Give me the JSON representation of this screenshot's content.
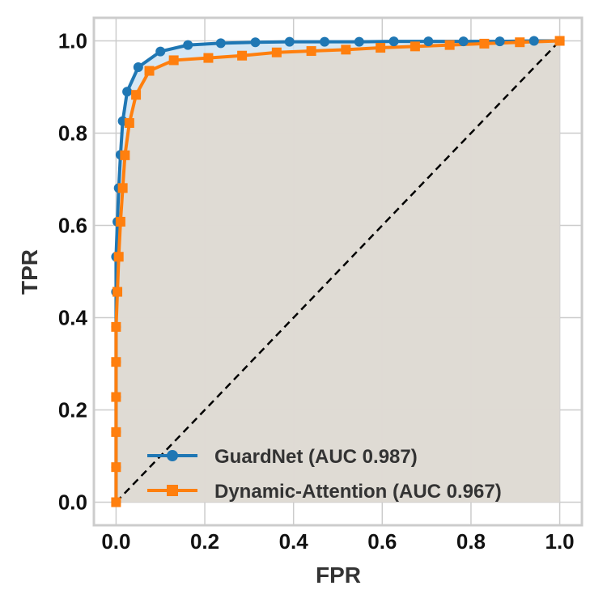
{
  "chart_data": {
    "type": "line",
    "title": "",
    "xlabel": "FPR",
    "ylabel": "TPR",
    "xlim": [
      -0.05,
      1.05
    ],
    "ylim": [
      -0.05,
      1.05
    ],
    "xticks": [
      "0.0",
      "0.2",
      "0.4",
      "0.6",
      "0.8",
      "1.0"
    ],
    "yticks": [
      "0.0",
      "0.2",
      "0.4",
      "0.6",
      "0.8",
      "1.0"
    ],
    "grid": true,
    "legend_position": "lower-right",
    "diagonal": {
      "style": "dashed",
      "color": "#000000",
      "from": [
        0,
        0
      ],
      "to": [
        1,
        1
      ]
    },
    "series": [
      {
        "name": "GuardNet (AUC 0.987)",
        "color": "#1f77b4",
        "marker": "circle",
        "fill": "#cfe3f2",
        "points": [
          [
            0.0,
            0.0
          ],
          [
            0.0,
            0.076
          ],
          [
            0.0,
            0.152
          ],
          [
            0.0,
            0.228
          ],
          [
            0.0,
            0.304
          ],
          [
            0.0,
            0.38
          ],
          [
            0.0,
            0.456
          ],
          [
            0.0,
            0.532
          ],
          [
            0.003,
            0.608
          ],
          [
            0.006,
            0.681
          ],
          [
            0.01,
            0.753
          ],
          [
            0.015,
            0.826
          ],
          [
            0.025,
            0.89
          ],
          [
            0.05,
            0.943
          ],
          [
            0.1,
            0.977
          ],
          [
            0.162,
            0.991
          ],
          [
            0.236,
            0.995
          ],
          [
            0.314,
            0.997
          ],
          [
            0.391,
            0.998
          ],
          [
            0.47,
            0.998
          ],
          [
            0.548,
            0.998
          ],
          [
            0.626,
            0.999
          ],
          [
            0.704,
            0.999
          ],
          [
            0.783,
            0.999
          ],
          [
            0.865,
            0.999
          ],
          [
            0.942,
            1.0
          ],
          [
            1.0,
            1.0
          ]
        ]
      },
      {
        "name": "Dynamic-Attention (AUC 0.967)",
        "color": "#ff7f0e",
        "marker": "square",
        "fill": "#e0d9d0",
        "points": [
          [
            0.0,
            0.0
          ],
          [
            0.0,
            0.076
          ],
          [
            0.0,
            0.152
          ],
          [
            0.0,
            0.228
          ],
          [
            0.0,
            0.304
          ],
          [
            0.0,
            0.38
          ],
          [
            0.003,
            0.456
          ],
          [
            0.006,
            0.532
          ],
          [
            0.01,
            0.608
          ],
          [
            0.015,
            0.681
          ],
          [
            0.02,
            0.752
          ],
          [
            0.03,
            0.822
          ],
          [
            0.045,
            0.883
          ],
          [
            0.075,
            0.935
          ],
          [
            0.13,
            0.958
          ],
          [
            0.208,
            0.963
          ],
          [
            0.284,
            0.968
          ],
          [
            0.362,
            0.975
          ],
          [
            0.44,
            0.978
          ],
          [
            0.518,
            0.981
          ],
          [
            0.596,
            0.985
          ],
          [
            0.674,
            0.988
          ],
          [
            0.752,
            0.991
          ],
          [
            0.83,
            0.994
          ],
          [
            0.91,
            0.997
          ],
          [
            1.0,
            1.0
          ]
        ]
      }
    ]
  }
}
